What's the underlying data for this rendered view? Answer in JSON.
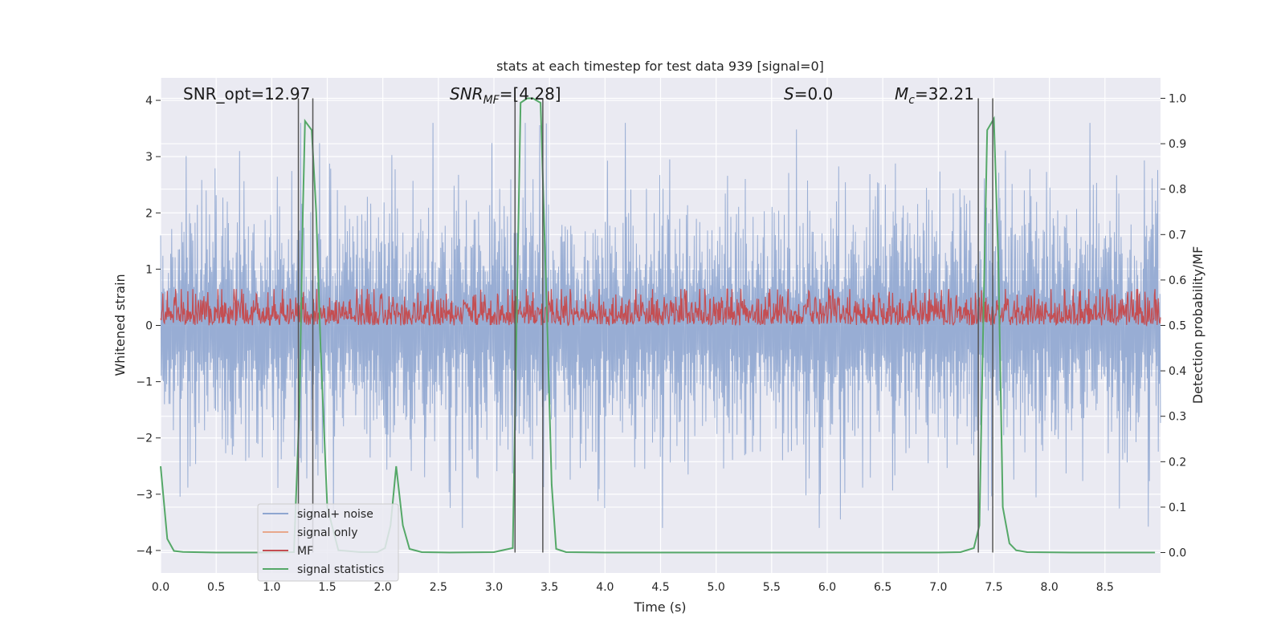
{
  "chart_data": {
    "type": "line",
    "title": "stats at each timestep for test data 939 [signal=0]",
    "xlabel": "Time (s)",
    "ylabel_left": "Whitened strain",
    "ylabel_right": "Detection probability/MF",
    "xlim": [
      0,
      9.0
    ],
    "ylim_left": [
      -4.4,
      4.4
    ],
    "ylim_right": [
      -0.045,
      1.045
    ],
    "x_ticks": [
      0,
      0.5,
      1,
      1.5,
      2,
      2.5,
      3,
      3.5,
      4,
      4.5,
      5,
      5.5,
      6,
      6.5,
      7,
      7.5,
      8,
      8.5
    ],
    "x_tick_labels": [
      "0.0",
      "0.5",
      "1.0",
      "1.5",
      "2.0",
      "2.5",
      "3.0",
      "3.5",
      "4.0",
      "4.5",
      "5.0",
      "5.5",
      "6.0",
      "6.5",
      "7.0",
      "7.5",
      "8.0",
      "8.5"
    ],
    "y_left_ticks": [
      -4,
      -3,
      -2,
      -1,
      0,
      1,
      2,
      3,
      4
    ],
    "y_left_tick_labels": [
      "−4",
      "−3",
      "−2",
      "−1",
      "0",
      "1",
      "2",
      "3",
      "4"
    ],
    "y_right_ticks": [
      0,
      0.1,
      0.2,
      0.3,
      0.4,
      0.5,
      0.6,
      0.7,
      0.8,
      0.9,
      1.0
    ],
    "y_right_tick_labels": [
      "0.0",
      "0.1",
      "0.2",
      "0.3",
      "0.4",
      "0.5",
      "0.6",
      "0.7",
      "0.8",
      "0.9",
      "1.0"
    ],
    "annotations": {
      "snr_opt": "SNR_opt=12.97",
      "snr_mf_prefix": "SNR",
      "snr_mf_sub": "MF",
      "snr_mf_value": "=[4.28]",
      "s_symbol": "S",
      "s_value": "=0.0",
      "mc_symbol": "M",
      "mc_sub": "c",
      "mc_value": "=32.21"
    },
    "legend": {
      "position": "lower-left",
      "entries": [
        {
          "label": "signal+ noise",
          "color": "#8fa6d0"
        },
        {
          "label": "signal only",
          "color": "#e8a88c"
        },
        {
          "label": "MF",
          "color": "#c44e52"
        },
        {
          "label": "signal statistics",
          "color": "#55a868"
        }
      ]
    },
    "colors": {
      "background": "#eaeaf2",
      "grid": "#ffffff",
      "noise": "#8fa6d0",
      "mf": "#c44e52",
      "stats": "#55a868",
      "markers": "#555555"
    },
    "series": {
      "noise": {
        "name": "signal+ noise",
        "description_range": [
          -3.8,
          3.6
        ],
        "sample_count": 1800
      },
      "mf": {
        "name": "MF",
        "axis": "right",
        "sample_count": 1800,
        "range": [
          0.5,
          0.58
        ]
      },
      "stats": {
        "name": "signal statistics",
        "axis": "right",
        "x": [
          0,
          0.06,
          0.12,
          0.2,
          0.5,
          0.9,
          1.2,
          1.25,
          1.28,
          1.3,
          1.36,
          1.4,
          1.44,
          1.5,
          1.6,
          1.8,
          1.95,
          2.02,
          2.07,
          2.12,
          2.18,
          2.24,
          2.35,
          2.6,
          3.0,
          3.17,
          3.2,
          3.24,
          3.3,
          3.35,
          3.42,
          3.48,
          3.52,
          3.56,
          3.65,
          4.0,
          5.0,
          6.0,
          7.0,
          7.2,
          7.32,
          7.37,
          7.4,
          7.44,
          7.5,
          7.54,
          7.58,
          7.64,
          7.7,
          7.8,
          8.2,
          8.6,
          8.95
        ],
        "y": [
          0.19,
          0.03,
          0.0035,
          0.0015,
          0.0,
          0.0,
          0.001,
          0.32,
          0.75,
          0.95,
          0.93,
          0.75,
          0.45,
          0.1,
          0.005,
          0.001,
          0.001,
          0.01,
          0.06,
          0.19,
          0.06,
          0.008,
          0.001,
          0.0,
          0.001,
          0.01,
          0.45,
          0.99,
          1.0,
          1.0,
          0.99,
          0.5,
          0.15,
          0.008,
          0.001,
          0.0,
          0.0,
          0.0,
          0.0,
          0.001,
          0.01,
          0.06,
          0.45,
          0.93,
          0.955,
          0.65,
          0.1,
          0.02,
          0.005,
          0.001,
          0.0,
          0.0,
          0.0
        ]
      }
    },
    "vertical_markers_x": [
      1.24,
      1.37,
      3.19,
      3.44,
      7.36,
      7.49
    ]
  }
}
